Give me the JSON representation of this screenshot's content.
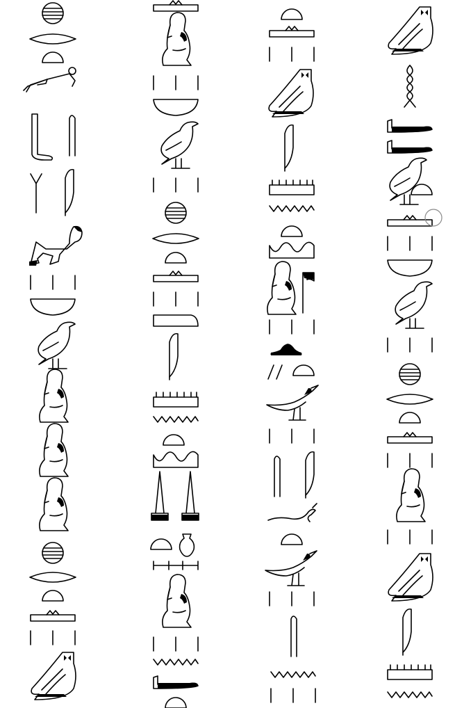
{
  "document": {
    "type": "hieroglyphic text",
    "columns": [
      {
        "index": 1,
        "signs": [
          "sun-disk-hatched",
          "lens-mouth",
          "bread-loaf",
          "man-lying-prone",
          "foot-l",
          "reed-stroke",
          "flowering-reed",
          "feather",
          "kneeling-man-bowing",
          "plural-strokes",
          "basket",
          "bird-vulture",
          "seated-man-hand-to-mouth",
          "seated-man-hand-to-mouth",
          "seated-man-hand-to-mouth",
          "sun-disk-hatched",
          "lens-mouth",
          "bread-loaf",
          "stroke-table",
          "plural-strokes",
          "owl-m"
        ]
      },
      {
        "index": 2,
        "signs": [
          "stroke-table",
          "seated-man-hand-to-mouth",
          "plural-strokes",
          "basket",
          "bird-vulture",
          "plural-strokes",
          "sun-disk-hatched",
          "lens-mouth",
          "bread-loaf",
          "stroke-table",
          "plural-strokes",
          "slab",
          "feather",
          "pool-comb",
          "water-zigzag",
          "bread-loaf",
          "hill-wavy",
          "obelisk-pair",
          "bread-loaf",
          "pot",
          "hobble-bar",
          "seated-man-hand-to-mouth",
          "plural-strokes",
          "water-zigzag",
          "arm-sign",
          "bread-loaf"
        ]
      },
      {
        "index": 3,
        "signs": [
          "bread-loaf",
          "stroke-table",
          "plural-strokes",
          "falcon",
          "feather",
          "pool-comb",
          "water-zigzag",
          "bread-loaf",
          "hill-wavy",
          "seated-man-hand-to-mouth",
          "flag-netjer",
          "plural-strokes",
          "loaf-sign-wavy",
          "double-strokes",
          "bread-loaf",
          "bird-ibis",
          "plural-strokes",
          "reed-stroke",
          "feather",
          "snake-worm",
          "bread-loaf",
          "bird-ibis",
          "plural-strokes",
          "reed-stroke",
          "water-zigzag",
          "plural-strokes"
        ]
      },
      {
        "index": 4,
        "signs": [
          "owl-m",
          "rope-spiral",
          "arm-sign",
          "arm-sign",
          "bird-vulture",
          "bread-loaf",
          "stroke-table",
          "plural-strokes",
          "basket",
          "bird-vulture",
          "plural-strokes",
          "sun-disk-hatched",
          "lens-mouth",
          "bread-loaf",
          "stroke-table",
          "plural-strokes",
          "seated-man-hand-to-mouth",
          "plural-strokes",
          "owl-m",
          "feather",
          "pool-comb",
          "water-zigzag"
        ]
      }
    ]
  },
  "cursor": {
    "name": "circle-cursor"
  }
}
